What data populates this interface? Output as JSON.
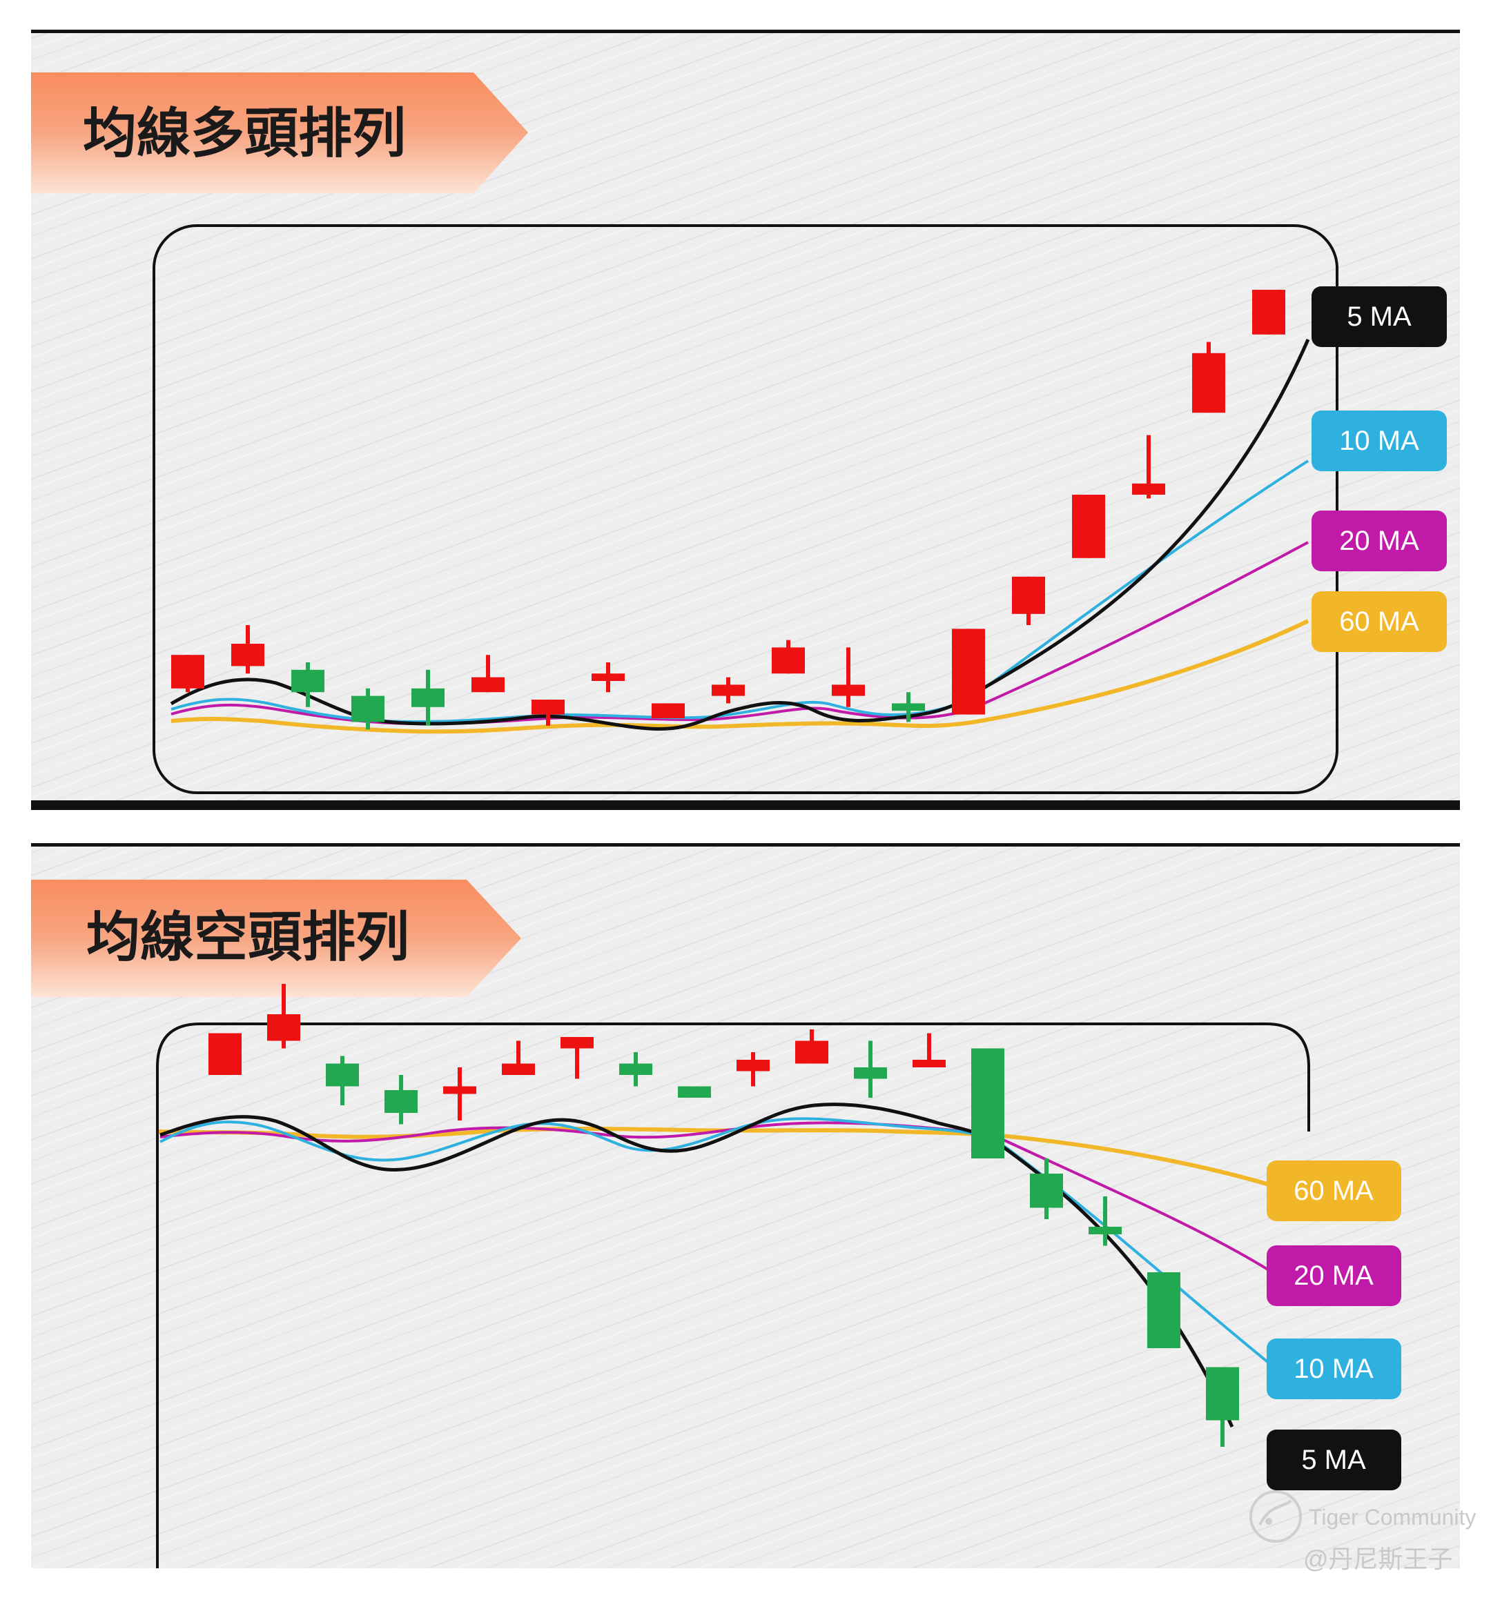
{
  "watermark": {
    "brand": "Tiger Community",
    "user": "@丹尼斯王子"
  },
  "colors": {
    "up_candle": "#ee1111",
    "down_candle": "#22a84e",
    "ma5": "#111111",
    "ma10": "#2fb1e0",
    "ma20": "#c21aa8",
    "ma60": "#f2b728",
    "title_ribbon": "#f7a27c"
  },
  "chart_data": [
    {
      "type": "candlestick",
      "title": "均線多頭排列",
      "legend": [
        "5 MA",
        "10 MA",
        "20 MA",
        "60 MA"
      ],
      "legend_placement": "right, top to bottom",
      "candles": [
        {
          "o": 18,
          "c": 27,
          "h": 27,
          "l": 17
        },
        {
          "o": 24,
          "c": 30,
          "h": 35,
          "l": 22
        },
        {
          "o": 23,
          "c": 17,
          "h": 25,
          "l": 13
        },
        {
          "o": 16,
          "c": 9,
          "h": 18,
          "l": 7
        },
        {
          "o": 18,
          "c": 13,
          "h": 23,
          "l": 8
        },
        {
          "o": 17,
          "c": 21,
          "h": 27,
          "l": 17
        },
        {
          "o": 11,
          "c": 15,
          "h": 15,
          "l": 8
        },
        {
          "o": 20,
          "c": 22,
          "h": 25,
          "l": 17
        },
        {
          "o": 10,
          "c": 14,
          "h": 14,
          "l": 10
        },
        {
          "o": 16,
          "c": 19,
          "h": 21,
          "l": 14
        },
        {
          "o": 22,
          "c": 29,
          "h": 31,
          "l": 22
        },
        {
          "o": 16,
          "c": 19,
          "h": 29,
          "l": 13
        },
        {
          "o": 14,
          "c": 12,
          "h": 17,
          "l": 9
        },
        {
          "o": 11,
          "c": 34,
          "h": 34,
          "l": 11
        },
        {
          "o": 38,
          "c": 48,
          "h": 48,
          "l": 35
        },
        {
          "o": 53,
          "c": 70,
          "h": 70,
          "l": 53
        },
        {
          "o": 70,
          "c": 73,
          "h": 86,
          "l": 69
        },
        {
          "o": 92,
          "c": 108,
          "h": 111,
          "l": 92
        },
        {
          "o": 113,
          "c": 125,
          "h": 125,
          "l": 113
        }
      ],
      "ylim": [
        0,
        130
      ]
    },
    {
      "type": "candlestick",
      "title": "均線空頭排列",
      "legend": [
        "60 MA",
        "20 MA",
        "10 MA",
        "5 MA"
      ],
      "legend_placement": "right, top to bottom",
      "candles": [
        {
          "o": 104,
          "c": 115,
          "h": 115,
          "l": 104
        },
        {
          "o": 113,
          "c": 120,
          "h": 128,
          "l": 111
        },
        {
          "o": 107,
          "c": 101,
          "h": 109,
          "l": 96
        },
        {
          "o": 100,
          "c": 94,
          "h": 104,
          "l": 91
        },
        {
          "o": 99,
          "c": 101,
          "h": 106,
          "l": 92
        },
        {
          "o": 104,
          "c": 107,
          "h": 113,
          "l": 104
        },
        {
          "o": 111,
          "c": 114,
          "h": 114,
          "l": 103
        },
        {
          "o": 107,
          "c": 104,
          "h": 110,
          "l": 101
        },
        {
          "o": 101,
          "c": 98,
          "h": 101,
          "l": 98
        },
        {
          "o": 105,
          "c": 108,
          "h": 110,
          "l": 101
        },
        {
          "o": 107,
          "c": 113,
          "h": 116,
          "l": 107
        },
        {
          "o": 106,
          "c": 103,
          "h": 113,
          "l": 98
        },
        {
          "o": 106,
          "c": 108,
          "h": 115,
          "l": 106
        },
        {
          "o": 111,
          "c": 82,
          "h": 111,
          "l": 82
        },
        {
          "o": 78,
          "c": 69,
          "h": 82,
          "l": 66
        },
        {
          "o": 64,
          "c": 62,
          "h": 72,
          "l": 59
        },
        {
          "o": 52,
          "c": 32,
          "h": 52,
          "l": 32
        },
        {
          "o": 27,
          "c": 13,
          "h": 27,
          "l": 6
        }
      ],
      "ylim": [
        0,
        130
      ]
    }
  ]
}
